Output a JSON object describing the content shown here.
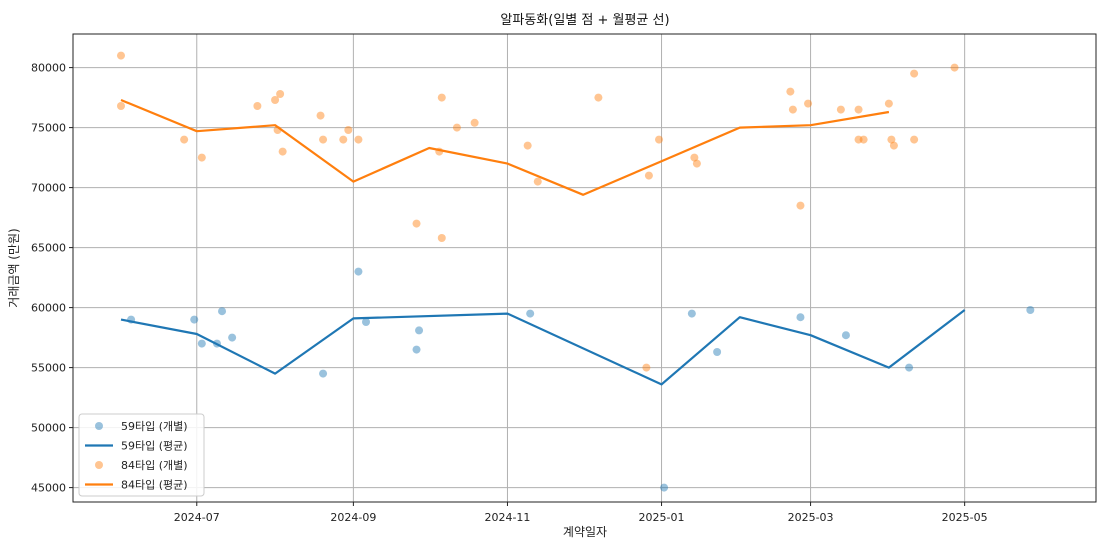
{
  "chart_data": {
    "type": "line",
    "title": "알파동화(일별 점 + 월평균 선)",
    "xlabel": "계약일자",
    "ylabel": "거래금액 (만원)",
    "ylim": [
      43800,
      82800
    ],
    "xlim": [
      "2024-05-13",
      "2025-06-22"
    ],
    "y_ticks": [
      45000,
      50000,
      55000,
      60000,
      65000,
      70000,
      75000,
      80000
    ],
    "x_ticks": [
      {
        "date": "2024-07-01",
        "label": "2024-07"
      },
      {
        "date": "2024-09-01",
        "label": "2024-09"
      },
      {
        "date": "2024-11-01",
        "label": "2024-11"
      },
      {
        "date": "2025-01-01",
        "label": "2025-01"
      },
      {
        "date": "2025-03-01",
        "label": "2025-03"
      },
      {
        "date": "2025-05-01",
        "label": "2025-05"
      }
    ],
    "grid": true,
    "legend_position": "lower-left",
    "series": [
      {
        "name": "59타입 (개별)",
        "kind": "scatter",
        "color": "#1f77b4",
        "points": [
          [
            "2024-06-05",
            59000
          ],
          [
            "2024-06-30",
            59000
          ],
          [
            "2024-07-03",
            57000
          ],
          [
            "2024-07-09",
            57000
          ],
          [
            "2024-07-11",
            59700
          ],
          [
            "2024-07-15",
            57500
          ],
          [
            "2024-08-20",
            54500
          ],
          [
            "2024-09-03",
            63000
          ],
          [
            "2024-09-06",
            58800
          ],
          [
            "2024-09-26",
            56500
          ],
          [
            "2024-09-27",
            58100
          ],
          [
            "2024-11-10",
            59500
          ],
          [
            "2025-01-02",
            45000
          ],
          [
            "2025-01-13",
            59500
          ],
          [
            "2025-01-23",
            56300
          ],
          [
            "2025-02-25",
            59200
          ],
          [
            "2025-03-15",
            57700
          ],
          [
            "2025-04-09",
            55000
          ],
          [
            "2025-05-27",
            59800
          ]
        ]
      },
      {
        "name": "59타입 (평균)",
        "kind": "line",
        "color": "#1f77b4",
        "points": [
          [
            "2024-06-01",
            59000
          ],
          [
            "2024-07-01",
            57800
          ],
          [
            "2024-08-01",
            54500
          ],
          [
            "2024-09-01",
            59100
          ],
          [
            "2024-11-01",
            59500
          ],
          [
            "2025-01-01",
            53600
          ],
          [
            "2025-02-01",
            59200
          ],
          [
            "2025-03-01",
            57700
          ],
          [
            "2025-04-01",
            55000
          ],
          [
            "2025-05-01",
            59800
          ]
        ]
      },
      {
        "name": "84타입 (개별)",
        "kind": "scatter",
        "color": "#ff7f0e",
        "points": [
          [
            "2024-06-01",
            81000
          ],
          [
            "2024-06-01",
            76800
          ],
          [
            "2024-06-26",
            74000
          ],
          [
            "2024-07-03",
            72500
          ],
          [
            "2024-07-25",
            76800
          ],
          [
            "2024-08-01",
            77300
          ],
          [
            "2024-08-03",
            77800
          ],
          [
            "2024-08-02",
            74800
          ],
          [
            "2024-08-04",
            73000
          ],
          [
            "2024-08-19",
            76000
          ],
          [
            "2024-08-20",
            74000
          ],
          [
            "2024-08-28",
            74000
          ],
          [
            "2024-08-30",
            74800
          ],
          [
            "2024-09-03",
            74000
          ],
          [
            "2024-09-26",
            67000
          ],
          [
            "2024-10-05",
            73000
          ],
          [
            "2024-10-06",
            77500
          ],
          [
            "2024-10-06",
            65800
          ],
          [
            "2024-10-12",
            75000
          ],
          [
            "2024-10-19",
            75400
          ],
          [
            "2024-11-09",
            73500
          ],
          [
            "2024-11-13",
            70500
          ],
          [
            "2024-12-07",
            77500
          ],
          [
            "2024-12-26",
            55000
          ],
          [
            "2024-12-27",
            71000
          ],
          [
            "2024-12-31",
            74000
          ],
          [
            "2025-01-14",
            72500
          ],
          [
            "2025-01-15",
            72000
          ],
          [
            "2025-02-21",
            78000
          ],
          [
            "2025-02-22",
            76500
          ],
          [
            "2025-02-25",
            68500
          ],
          [
            "2025-02-28",
            77000
          ],
          [
            "2025-03-13",
            76500
          ],
          [
            "2025-03-20",
            76500
          ],
          [
            "2025-03-20",
            74000
          ],
          [
            "2025-03-22",
            74000
          ],
          [
            "2025-04-01",
            77000
          ],
          [
            "2025-04-02",
            74000
          ],
          [
            "2025-04-03",
            73500
          ],
          [
            "2025-04-11",
            79500
          ],
          [
            "2025-04-11",
            74000
          ],
          [
            "2025-04-27",
            80000
          ]
        ]
      },
      {
        "name": "84타입 (평균)",
        "kind": "line",
        "color": "#ff7f0e",
        "points": [
          [
            "2024-06-01",
            77300
          ],
          [
            "2024-07-01",
            74700
          ],
          [
            "2024-08-01",
            75200
          ],
          [
            "2024-09-01",
            70500
          ],
          [
            "2024-10-01",
            73300
          ],
          [
            "2024-11-01",
            72000
          ],
          [
            "2024-12-01",
            69400
          ],
          [
            "2025-01-01",
            72200
          ],
          [
            "2025-02-01",
            75000
          ],
          [
            "2025-03-01",
            75200
          ],
          [
            "2025-04-01",
            76300
          ]
        ]
      }
    ]
  }
}
